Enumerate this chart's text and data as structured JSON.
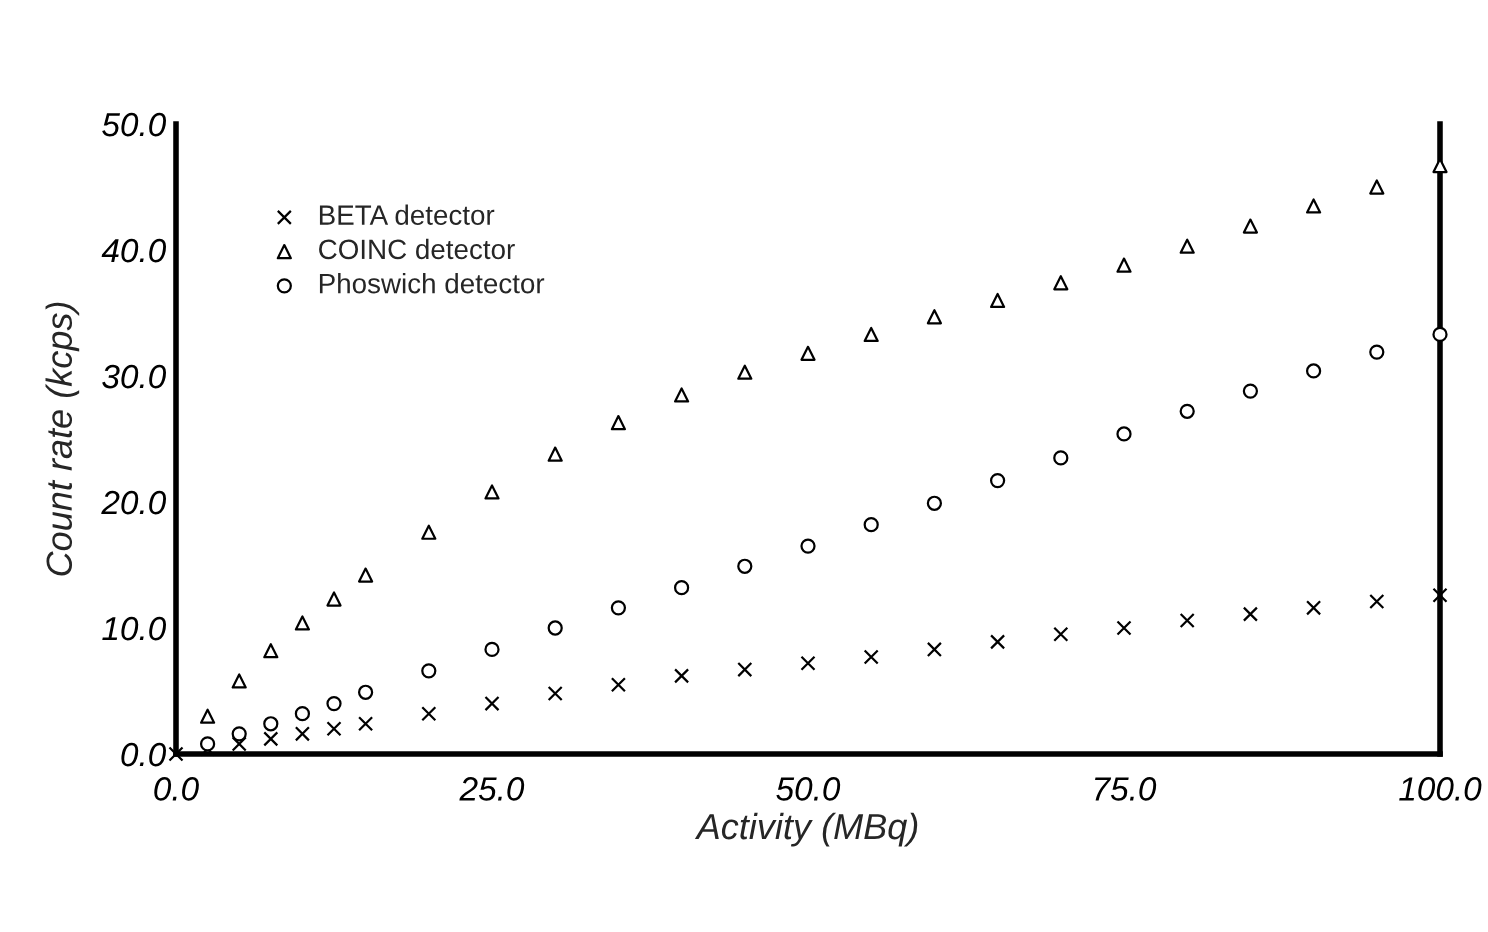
{
  "chart_data": {
    "type": "scatter",
    "xlabel": "Activity (MBq)",
    "ylabel": "Count rate (kcps)",
    "x": [
      0,
      2.5,
      5,
      7.5,
      10,
      12.5,
      15,
      20,
      25,
      30,
      35,
      40,
      45,
      50,
      55,
      60,
      65,
      70,
      75,
      80,
      85,
      90,
      95,
      100
    ],
    "series": [
      {
        "name": "BETA detector",
        "color": "#000000",
        "marker": "cross",
        "values": [
          0,
          0.4,
          0.8,
          1.2,
          1.6,
          2.0,
          2.4,
          3.2,
          4.0,
          4.8,
          5.5,
          6.2,
          6.7,
          7.2,
          7.7,
          8.3,
          8.9,
          9.5,
          10.0,
          10.6,
          11.1,
          11.6,
          12.1,
          12.6
        ]
      },
      {
        "name": "COINC detector",
        "color": "#000000",
        "marker": "triangle",
        "values": [
          null,
          3,
          5.8,
          8.2,
          10.4,
          12.3,
          14.2,
          17.6,
          20.8,
          23.8,
          26.3,
          28.5,
          30.3,
          31.8,
          33.3,
          34.7,
          36.0,
          37.4,
          38.8,
          40.3,
          41.9,
          43.5,
          45.0,
          46.7
        ]
      },
      {
        "name": "Phoswich detector",
        "color": "#000000",
        "marker": "circle",
        "values": [
          null,
          0.8,
          1.6,
          2.4,
          3.2,
          4.0,
          4.9,
          6.6,
          8.3,
          10.0,
          11.6,
          13.2,
          14.9,
          16.5,
          18.2,
          19.9,
          21.7,
          23.5,
          25.4,
          27.2,
          28.8,
          30.4,
          31.9,
          33.3
        ]
      }
    ],
    "xlim": [
      0,
      100
    ],
    "xticks": [
      {
        "value": 0,
        "label": "0.0"
      },
      {
        "value": 25,
        "label": "25.0"
      },
      {
        "value": 50,
        "label": "50.0"
      },
      {
        "value": 75,
        "label": "75.0"
      },
      {
        "value": 100,
        "label": "100.0"
      }
    ],
    "ylim": [
      0,
      50
    ],
    "yticks": [
      {
        "value": 0,
        "label": "0.0"
      },
      {
        "value": 10,
        "label": "10.0"
      },
      {
        "value": 20,
        "label": "20.0"
      },
      {
        "value": 30,
        "label": "30.0"
      },
      {
        "value": 40,
        "label": "40.0"
      },
      {
        "value": 50,
        "label": "50.0"
      }
    ],
    "grid": false,
    "legend": "top left"
  }
}
